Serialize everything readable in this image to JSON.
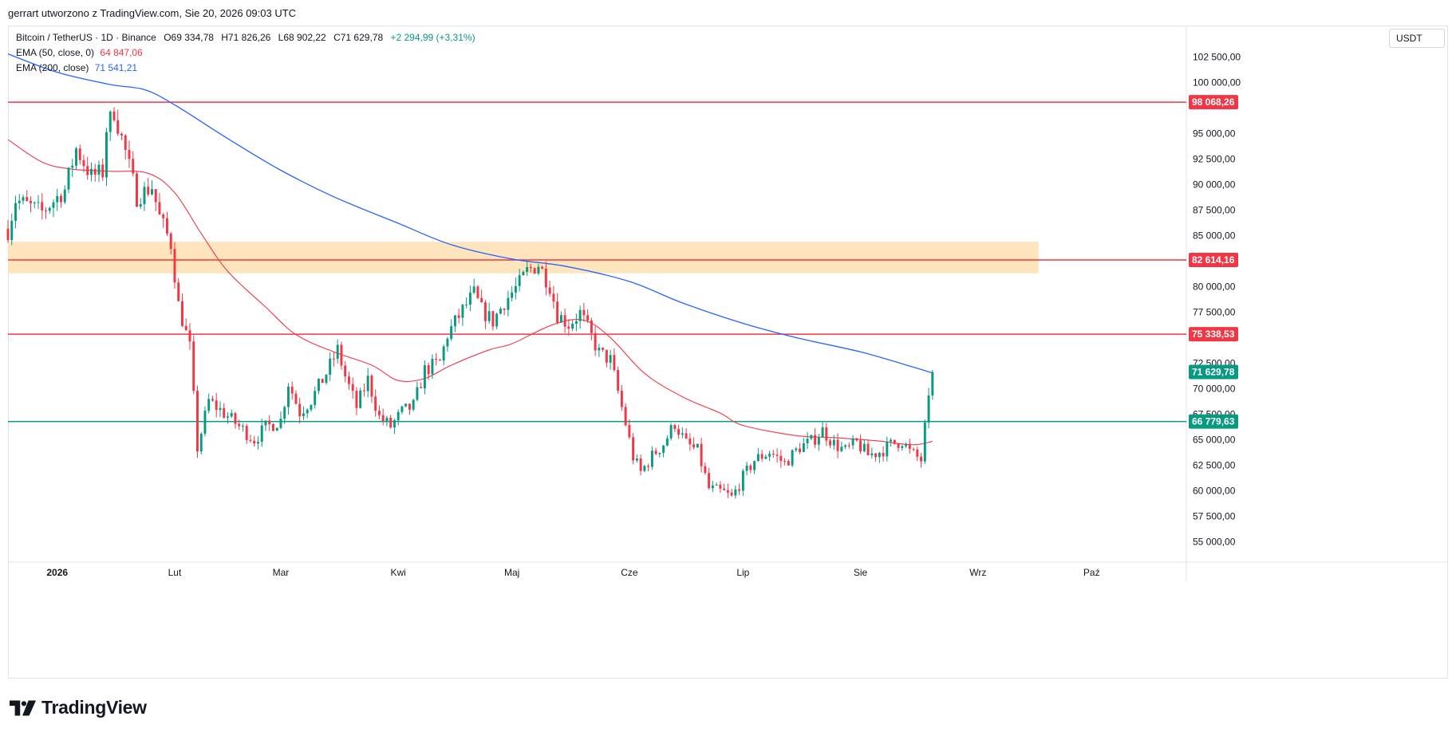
{
  "header": {
    "credit": "gerrart utworzono z TradingView.com, Sie 20, 2026 09:03 UTC"
  },
  "legend": {
    "symbol": "Bitcoin / TetherUS · 1D · Binance",
    "open": "O69 334,78",
    "high": "H71 826,26",
    "low": "L68 902,22",
    "close": "C71 629,78",
    "change": "+2 294,99 (+3,31%)",
    "ema50_label": "EMA (50, close, 0)",
    "ema50_value": "64 847,06",
    "ema200_label": "EMA (200, close)",
    "ema200_value": "71 541,21"
  },
  "currency": "USDT",
  "brand": {
    "name": "TradingView"
  },
  "colors": {
    "up": "#089981",
    "down": "#f23645",
    "ema50": "#f23645",
    "ema200": "#2962ff",
    "zone": "#ffe0b2",
    "support_line": "#089981",
    "resistance_line": "#f23645",
    "axis_text": "#131722"
  },
  "chart_data": {
    "type": "candlestick",
    "y_axis": {
      "min": 53000,
      "max": 105500,
      "ticks": [
        102500,
        100000,
        95000,
        92500,
        90000,
        87500,
        85000,
        80000,
        77500,
        72500,
        70000,
        67500,
        65000,
        62500,
        60000,
        57500,
        55000
      ],
      "tick_labels": [
        "102 500,00",
        "100 000,00",
        "95 000,00",
        "92 500,00",
        "90 000,00",
        "87 500,00",
        "85 000,00",
        "80 000,00",
        "77 500,00",
        "72 500,00",
        "70 000,00",
        "67 500,00",
        "65 000,00",
        "62 500,00",
        "60 000,00",
        "57 500,00",
        "55 000,00"
      ]
    },
    "x_axis": {
      "start": "2025-12-19",
      "end": "2026-10-26",
      "labels": [
        {
          "date": "2026-01-01",
          "text": "2026",
          "bold": true
        },
        {
          "date": "2026-02-01",
          "text": "Lut"
        },
        {
          "date": "2026-03-01",
          "text": "Mar"
        },
        {
          "date": "2026-04-01",
          "text": "Kwi"
        },
        {
          "date": "2026-05-01",
          "text": "Maj"
        },
        {
          "date": "2026-06-01",
          "text": "Cze"
        },
        {
          "date": "2026-07-01",
          "text": "Lip"
        },
        {
          "date": "2026-08-01",
          "text": "Sie"
        },
        {
          "date": "2026-09-01",
          "text": "Wrz"
        },
        {
          "date": "2026-10-01",
          "text": "Paź"
        }
      ]
    },
    "horizontal_lines": [
      {
        "value": 98068.26,
        "label": "98 068,26",
        "color": "#f23645"
      },
      {
        "value": 82614.16,
        "label": "82 614,16",
        "color": "#f23645"
      },
      {
        "value": 75338.53,
        "label": "75 338,53",
        "color": "#f23645"
      },
      {
        "value": 66779.63,
        "label": "66 779,63",
        "color": "#089981"
      }
    ],
    "last_price": {
      "value": 71629.78,
      "label": "71 629,78",
      "color": "#089981"
    },
    "zone": {
      "from": 81300,
      "to": 84400,
      "start": "2025-12-19",
      "end": "2026-09-17",
      "color": "#ffe0b2"
    },
    "close_path": [
      [
        "2025-12-19",
        85500
      ],
      [
        "2025-12-21",
        88500
      ],
      [
        "2025-12-28",
        87300
      ],
      [
        "2026-01-03",
        89500
      ],
      [
        "2026-01-06",
        93500
      ],
      [
        "2026-01-10",
        90800
      ],
      [
        "2026-01-13",
        91200
      ],
      [
        "2026-01-14",
        95500
      ],
      [
        "2026-01-16",
        97200
      ],
      [
        "2026-01-19",
        93200
      ],
      [
        "2026-01-22",
        88800
      ],
      [
        "2026-01-26",
        89800
      ],
      [
        "2026-01-28",
        86800
      ],
      [
        "2026-01-31",
        84200
      ],
      [
        "2026-02-02",
        78200
      ],
      [
        "2026-02-05",
        74000
      ],
      [
        "2026-02-07",
        64200
      ],
      [
        "2026-02-10",
        68800
      ],
      [
        "2026-02-14",
        67600
      ],
      [
        "2026-02-18",
        66300
      ],
      [
        "2026-02-22",
        65000
      ],
      [
        "2026-02-25",
        66200
      ],
      [
        "2026-03-01",
        66900
      ],
      [
        "2026-03-03",
        70600
      ],
      [
        "2026-03-06",
        67700
      ],
      [
        "2026-03-09",
        68900
      ],
      [
        "2026-03-13",
        71500
      ],
      [
        "2026-03-16",
        73800
      ],
      [
        "2026-03-18",
        71200
      ],
      [
        "2026-03-21",
        68200
      ],
      [
        "2026-03-24",
        70900
      ],
      [
        "2026-03-27",
        67200
      ],
      [
        "2026-03-30",
        66300
      ],
      [
        "2026-04-02",
        67700
      ],
      [
        "2026-04-05",
        68300
      ],
      [
        "2026-04-08",
        71800
      ],
      [
        "2026-04-12",
        72600
      ],
      [
        "2026-04-14",
        75300
      ],
      [
        "2026-04-18",
        77700
      ],
      [
        "2026-04-21",
        79300
      ],
      [
        "2026-04-23",
        77700
      ],
      [
        "2026-04-26",
        76600
      ],
      [
        "2026-04-29",
        78500
      ],
      [
        "2026-05-03",
        80300
      ],
      [
        "2026-05-05",
        81500
      ],
      [
        "2026-05-08",
        82200
      ],
      [
        "2026-05-11",
        80100
      ],
      [
        "2026-05-13",
        77300
      ],
      [
        "2026-05-16",
        76300
      ],
      [
        "2026-05-19",
        77400
      ],
      [
        "2026-05-21",
        75900
      ],
      [
        "2026-05-24",
        73500
      ],
      [
        "2026-05-27",
        72800
      ],
      [
        "2026-05-31",
        66600
      ],
      [
        "2026-06-02",
        63300
      ],
      [
        "2026-06-04",
        61800
      ],
      [
        "2026-06-07",
        63400
      ],
      [
        "2026-06-10",
        64600
      ],
      [
        "2026-06-13",
        66600
      ],
      [
        "2026-06-16",
        64600
      ],
      [
        "2026-06-19",
        63900
      ],
      [
        "2026-06-22",
        60200
      ],
      [
        "2026-06-26",
        59800
      ],
      [
        "2026-06-28",
        59300
      ],
      [
        "2026-07-01",
        61300
      ],
      [
        "2026-07-04",
        63000
      ],
      [
        "2026-07-08",
        63800
      ],
      [
        "2026-07-12",
        62700
      ],
      [
        "2026-07-16",
        64300
      ],
      [
        "2026-07-19",
        64800
      ],
      [
        "2026-07-22",
        65900
      ],
      [
        "2026-07-25",
        64600
      ],
      [
        "2026-07-28",
        63900
      ],
      [
        "2026-07-31",
        64700
      ],
      [
        "2026-08-03",
        63500
      ],
      [
        "2026-08-06",
        63800
      ],
      [
        "2026-08-09",
        64500
      ],
      [
        "2026-08-12",
        64900
      ],
      [
        "2026-08-14",
        63800
      ],
      [
        "2026-08-17",
        63000
      ],
      [
        "2026-08-19",
        69334.78
      ],
      [
        "2026-08-20",
        71629.78
      ]
    ],
    "ema200_path": [
      [
        "2025-12-19",
        102800
      ],
      [
        "2026-01-01",
        101000
      ],
      [
        "2026-01-15",
        99800
      ],
      [
        "2026-01-24",
        99300
      ],
      [
        "2026-02-01",
        97800
      ],
      [
        "2026-02-15",
        94500
      ],
      [
        "2026-03-01",
        91400
      ],
      [
        "2026-03-15",
        88800
      ],
      [
        "2026-04-01",
        86200
      ],
      [
        "2026-04-15",
        84100
      ],
      [
        "2026-05-01",
        82700
      ],
      [
        "2026-05-15",
        82000
      ],
      [
        "2026-06-01",
        80500
      ],
      [
        "2026-06-15",
        78400
      ],
      [
        "2026-07-01",
        76400
      ],
      [
        "2026-07-15",
        75000
      ],
      [
        "2026-08-01",
        73600
      ],
      [
        "2026-08-15",
        72100
      ],
      [
        "2026-08-20",
        71541.21
      ]
    ],
    "ema50_path": [
      [
        "2025-12-19",
        94400
      ],
      [
        "2025-12-28",
        92200
      ],
      [
        "2026-01-05",
        91500
      ],
      [
        "2026-01-15",
        91300
      ],
      [
        "2026-01-25",
        91100
      ],
      [
        "2026-02-01",
        89200
      ],
      [
        "2026-02-08",
        85200
      ],
      [
        "2026-02-15",
        81500
      ],
      [
        "2026-02-25",
        78000
      ],
      [
        "2026-03-05",
        75300
      ],
      [
        "2026-03-15",
        73600
      ],
      [
        "2026-03-25",
        72300
      ],
      [
        "2026-04-01",
        70800
      ],
      [
        "2026-04-08",
        71000
      ],
      [
        "2026-04-15",
        72300
      ],
      [
        "2026-04-25",
        73800
      ],
      [
        "2026-05-01",
        74400
      ],
      [
        "2026-05-12",
        76300
      ],
      [
        "2026-05-20",
        76700
      ],
      [
        "2026-05-27",
        75000
      ],
      [
        "2026-06-05",
        71500
      ],
      [
        "2026-06-15",
        69200
      ],
      [
        "2026-06-25",
        67600
      ],
      [
        "2026-07-01",
        66400
      ],
      [
        "2026-07-15",
        65400
      ],
      [
        "2026-07-25",
        65200
      ],
      [
        "2026-08-05",
        64900
      ],
      [
        "2026-08-15",
        64500
      ],
      [
        "2026-08-20",
        64847.06
      ]
    ]
  }
}
